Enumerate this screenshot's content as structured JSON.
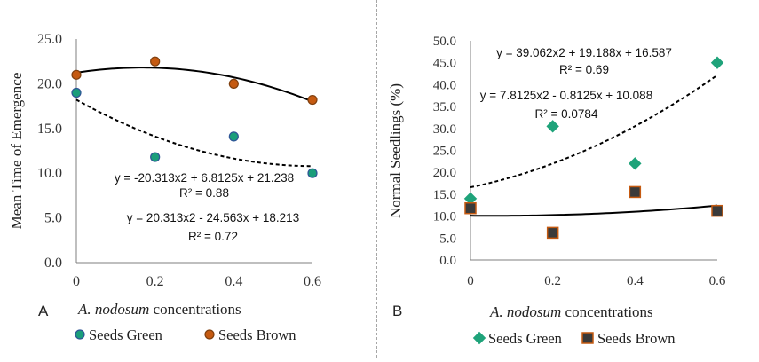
{
  "chart_data": [
    {
      "panel_label": "A",
      "type": "scatter",
      "xlabel_italic": "A. nodosum",
      "xlabel_rest": "concentrations",
      "ylabel": "Mean Time of Emergence",
      "xlim": [
        0,
        0.6
      ],
      "ylim": [
        0,
        25
      ],
      "x_ticks": [
        "0",
        "0.2",
        "0.4",
        "0.6"
      ],
      "y_ticks": [
        "0.0",
        "5.0",
        "10.0",
        "15.0",
        "20.0",
        "25.0"
      ],
      "grid": false,
      "legend_position": "bottom",
      "series": [
        {
          "name": "Seeds Green",
          "marker": "circle",
          "fill": "#1a9e7a",
          "stroke": "#2f5597",
          "x": [
            0,
            0.2,
            0.4,
            0.6
          ],
          "y": [
            19.0,
            11.8,
            14.1,
            10.0
          ],
          "trendline": {
            "style": "dashed",
            "coefficients": [
              20.313,
              -24.563,
              18.213
            ]
          }
        },
        {
          "name": "Seeds Brown",
          "marker": "circle",
          "fill": "#c55a11",
          "stroke": "#7f3f0e",
          "x": [
            0,
            0.2,
            0.4,
            0.6
          ],
          "y": [
            21.0,
            22.5,
            20.0,
            18.2
          ],
          "trendline": {
            "style": "solid",
            "coefficients": [
              -20.313,
              6.8125,
              21.238
            ]
          }
        }
      ],
      "annotations": [
        {
          "equation": "y = -20.313x2 + 6.8125x + 21.238",
          "r2": "R² = 0.88"
        },
        {
          "equation": "y = 20.313x2 - 24.563x + 18.213",
          "r2": "R² = 0.72"
        }
      ]
    },
    {
      "panel_label": "B",
      "type": "scatter",
      "xlabel_italic": "A. nodosum",
      "xlabel_rest": "concentrations",
      "ylabel": "Normal Seedlings (%)",
      "xlim": [
        0,
        0.6
      ],
      "ylim": [
        0,
        50
      ],
      "x_ticks": [
        "0",
        "0.2",
        "0.4",
        "0.6"
      ],
      "y_ticks": [
        "0.0",
        "5.0",
        "10.0",
        "15.0",
        "20.0",
        "25.0",
        "30.0",
        "35.0",
        "40.0",
        "45.0",
        "50.0"
      ],
      "grid": false,
      "legend_position": "bottom",
      "series": [
        {
          "name": "Seeds Green",
          "marker": "diamond",
          "fill": "#1fa37a",
          "stroke": "#1fa37a",
          "x": [
            0,
            0.2,
            0.4,
            0.6
          ],
          "y": [
            14.0,
            30.5,
            22.0,
            45.0
          ],
          "trendline": {
            "style": "dashed",
            "coefficients": [
              39.062,
              19.188,
              16.587
            ]
          }
        },
        {
          "name": "Seeds Brown",
          "marker": "square",
          "fill": "#3a3a3a",
          "stroke": "#c55a11",
          "x": [
            0,
            0.2,
            0.4,
            0.6
          ],
          "y": [
            11.8,
            6.2,
            15.5,
            11.2
          ],
          "trendline": {
            "style": "solid",
            "coefficients": [
              7.8125,
              -0.8125,
              10.088
            ]
          }
        }
      ],
      "annotations": [
        {
          "equation": "y = 39.062x2 + 19.188x + 16.587",
          "r2": "R² = 0.69"
        },
        {
          "equation": "y = 7.8125x2 - 0.8125x + 10.088",
          "r2": "R² = 0.0784"
        }
      ]
    }
  ]
}
